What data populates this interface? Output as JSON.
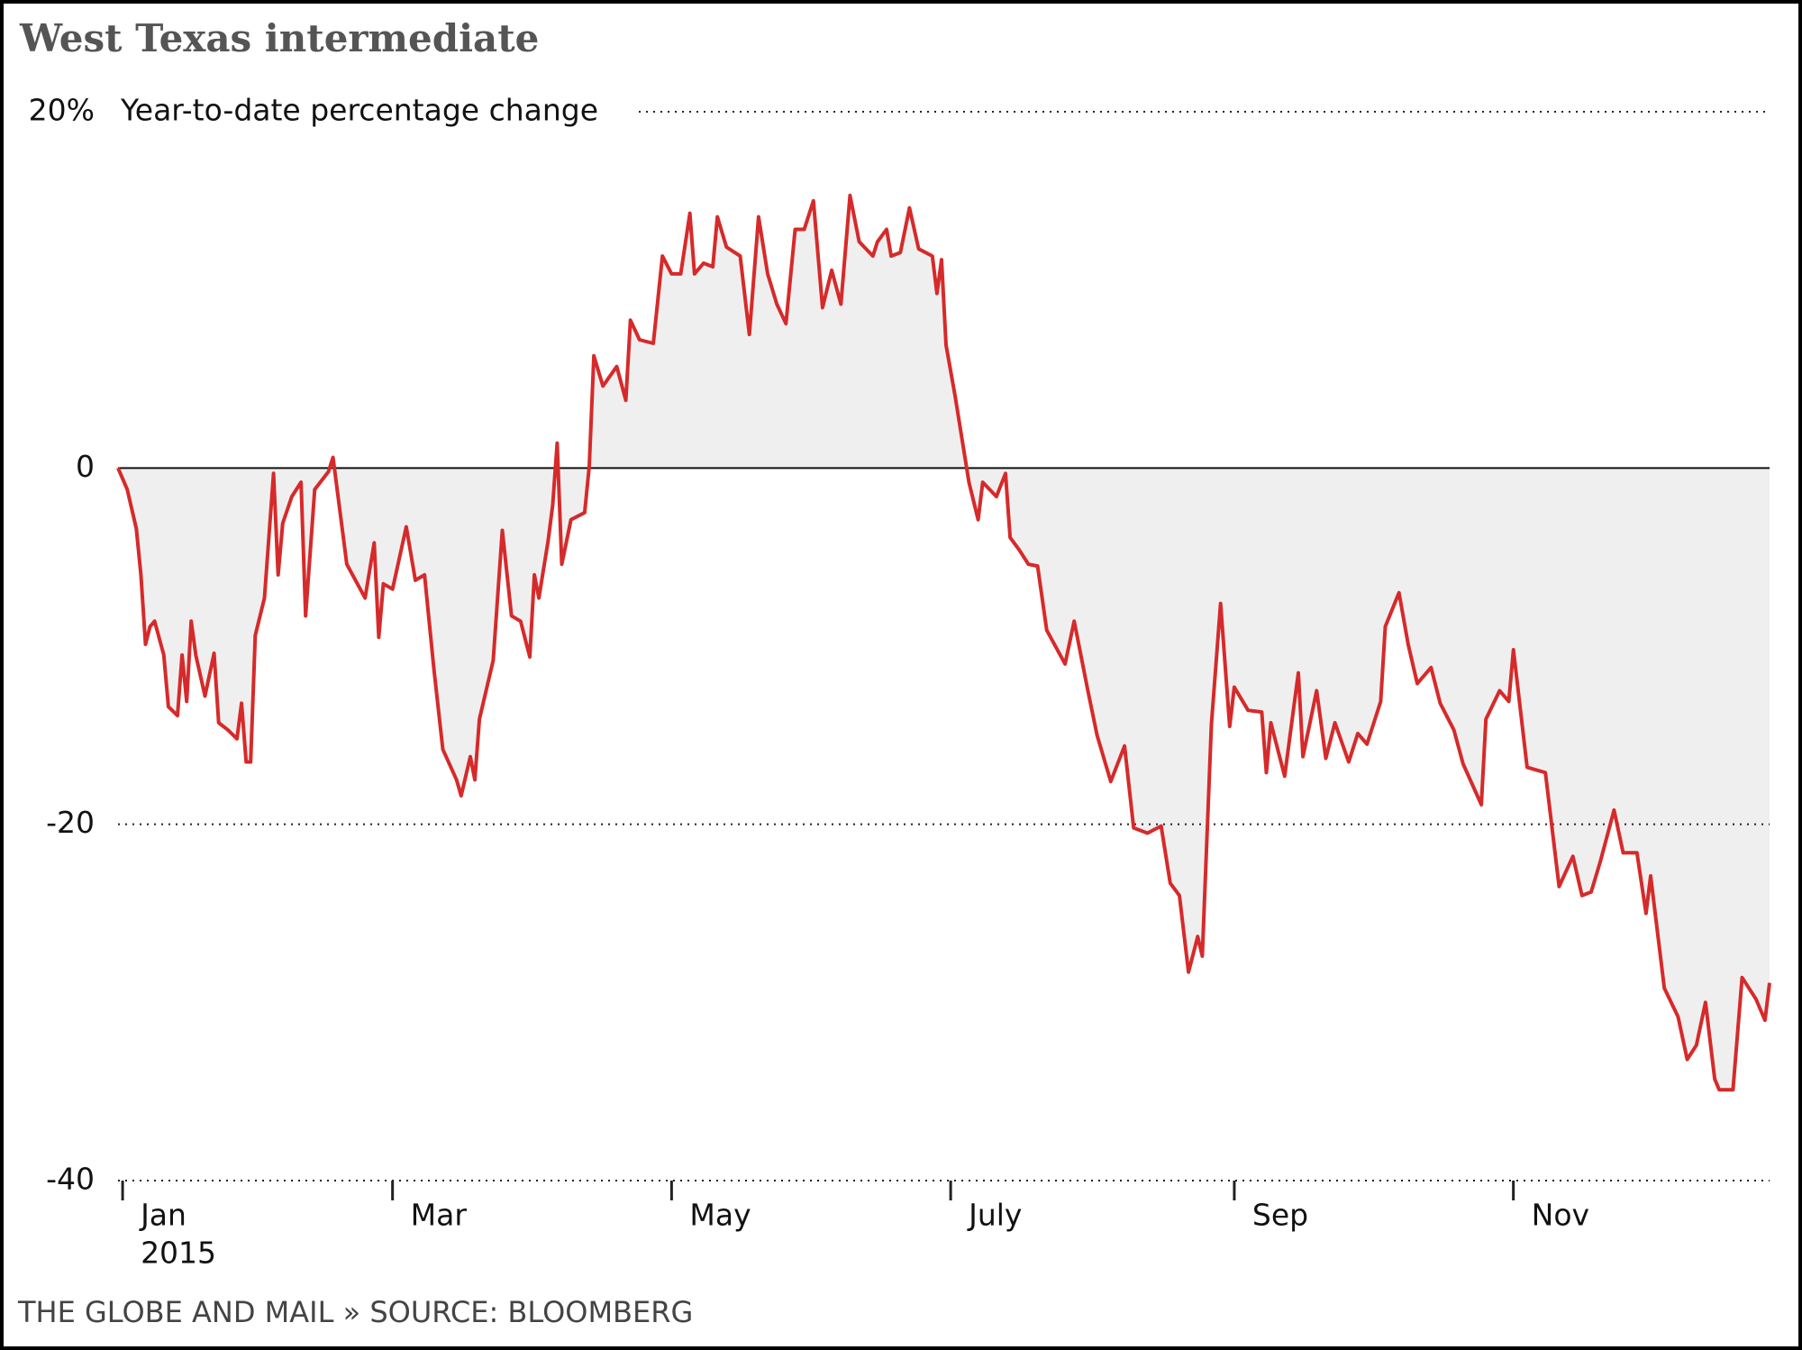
{
  "chart_data": {
    "type": "area-line",
    "title": "West Texas intermediate",
    "subtitle": "Year-to-date percentage change",
    "source": "THE GLOBE AND MAIL » SOURCE: BLOOMBERG",
    "year_label": "2015",
    "color": "#d62a2a",
    "fill_color": "#efefef",
    "x": [
      0,
      2,
      4,
      5,
      6,
      7,
      8,
      10,
      11,
      13,
      14,
      15,
      16,
      17,
      19,
      21,
      22,
      24,
      26,
      27,
      28,
      29,
      30,
      32,
      34,
      35,
      36,
      38,
      40,
      41,
      43,
      46,
      47,
      50,
      54,
      56,
      57,
      58,
      60,
      63,
      65,
      67,
      69,
      71,
      74,
      75,
      77,
      78,
      79,
      82,
      84,
      86,
      88,
      90,
      91,
      92,
      94,
      95,
      96,
      97,
      99,
      102,
      103,
      104,
      106,
      109,
      111,
      112,
      114,
      117,
      119,
      121,
      123,
      125,
      126,
      128,
      130,
      131,
      133,
      136,
      138,
      140,
      142,
      144,
      146,
      148,
      150,
      152,
      154,
      156,
      158,
      160,
      162,
      165,
      166,
      168,
      169,
      171,
      173,
      175,
      178,
      179,
      180,
      181,
      183,
      186,
      188,
      189,
      192,
      194,
      195,
      197,
      199,
      201,
      203,
      207,
      209,
      212,
      214,
      217,
      220,
      222,
      225,
      228,
      230,
      232,
      234,
      236,
      237,
      239,
      241,
      243,
      244,
      247,
      250,
      251,
      252,
      255,
      258,
      259,
      262,
      264,
      266,
      269,
      271,
      273,
      276,
      277,
      280,
      282,
      284,
      287,
      289,
      292,
      294,
      298,
      299,
      302,
      304,
      305,
      308,
      312,
      315,
      318,
      320,
      322,
      324,
      327,
      329,
      332,
      334,
      335,
      338,
      341,
      343,
      345,
      347,
      349,
      350,
      353,
      355,
      358,
      360,
      361
    ],
    "values": [
      0,
      -1.2,
      -3.4,
      -6,
      -9.9,
      -8.9,
      -8.6,
      -10.5,
      -13.4,
      -13.9,
      -10.5,
      -13.1,
      -8.6,
      -10.5,
      -12.8,
      -10.4,
      -14.3,
      -14.7,
      -15.2,
      -13.2,
      -16.5,
      -16.5,
      -9.4,
      -7.3,
      -0.3,
      -6,
      -3.1,
      -1.6,
      -0.8,
      -8.3,
      -1.2,
      -0.2,
      0.6,
      -5.4,
      -7.3,
      -4.2,
      -9.5,
      -6.5,
      -6.8,
      -3.3,
      -6.3,
      -6,
      -11.2,
      -15.8,
      -17.5,
      -18.4,
      -16.2,
      -17.5,
      -14.1,
      -10.8,
      -3.5,
      -8.3,
      -8.6,
      -10.6,
      -6,
      -7.3,
      -4.1,
      -2.1,
      1.4,
      -5.4,
      -2.9,
      -2.5,
      0.1,
      6.3,
      4.6,
      5.7,
      3.8,
      8.3,
      7.2,
      7,
      11.9,
      10.9,
      10.9,
      14.3,
      10.9,
      11.5,
      11.3,
      14.1,
      12.4,
      11.9,
      7.5,
      14.1,
      10.9,
      9.2,
      8.1,
      13.4,
      13.4,
      15,
      9,
      11.1,
      9.2,
      15.3,
      12.7,
      11.9,
      12.7,
      13.4,
      11.9,
      12.1,
      14.6,
      12.3,
      11.9,
      9.8,
      11.7,
      6.9,
      4,
      -0.8,
      -2.9,
      -0.8,
      -1.6,
      -0.3,
      -3.9,
      -4.6,
      -5.4,
      -5.5,
      -9.1,
      -11,
      -8.6,
      -12.5,
      -15,
      -17.6,
      -15.6,
      -20.2,
      -20.5,
      -20.1,
      -23.3,
      -24,
      -28.3,
      -26.3,
      -27.4,
      -14.4,
      -7.6,
      -14.5,
      -12.3,
      -13.6,
      -13.7,
      -17.1,
      -14.3,
      -17.3,
      -11.5,
      -16.2,
      -12.5,
      -16.3,
      -14.3,
      -16.5,
      -14.9,
      -15.5,
      -13.1,
      -8.9,
      -7,
      -9.9,
      -12.1,
      -11.2,
      -13.2,
      -14.7,
      -16.6,
      -18.9,
      -14.1,
      -12.5,
      -13.1,
      -10.2,
      -16.8,
      -17.1,
      -23.5,
      -21.8,
      -24,
      -23.8,
      -22.1,
      -19.2,
      -21.6,
      -21.6,
      -25,
      -22.9,
      -29.2,
      -30.8,
      -33.2,
      -32.4,
      -30,
      -34.3,
      -34.9,
      -34.9,
      -28.6,
      -29.8,
      -31,
      -28.9
    ],
    "xlim": [
      0,
      361
    ],
    "xticks": [
      {
        "value": 1,
        "label": "Jan"
      },
      {
        "value": 60,
        "label": "Mar"
      },
      {
        "value": 121,
        "label": "May"
      },
      {
        "value": 182,
        "label": "July"
      },
      {
        "value": 244,
        "label": "Sep"
      },
      {
        "value": 305,
        "label": "Nov"
      }
    ],
    "ylim": [
      -40,
      20
    ],
    "yticks": [
      {
        "value": 20,
        "label": "20%"
      },
      0,
      -20,
      -40
    ],
    "grid": true
  }
}
